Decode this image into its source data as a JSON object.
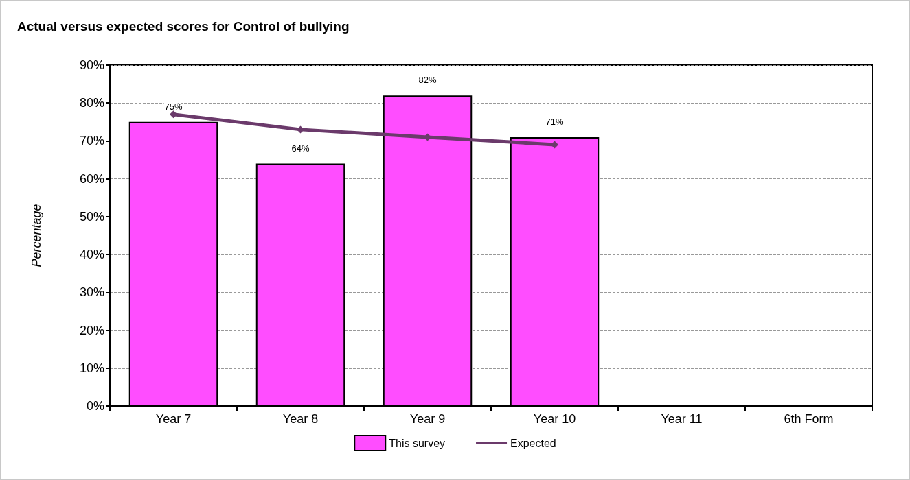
{
  "chart_data": {
    "type": "bar",
    "title": "Actual versus expected scores for Control of bullying",
    "ylabel": "Percentage",
    "categories": [
      "Year 7",
      "Year 8",
      "Year 9",
      "Year 10",
      "Year 11",
      "6th Form"
    ],
    "series": [
      {
        "name": "This survey",
        "color": "#ff4dff",
        "values": [
          75,
          64,
          82,
          71,
          null,
          null
        ],
        "value_labels": [
          "75%",
          "64%",
          "82%",
          "71%",
          null,
          null
        ]
      },
      {
        "name": "Expected",
        "type": "line",
        "color": "#6b3a6b",
        "values": [
          77,
          73,
          71,
          69,
          null,
          null
        ],
        "marker": "diamond",
        "line_style": "solid"
      }
    ],
    "ylim": [
      0,
      90
    ],
    "yticks": [
      {
        "value": 0,
        "label": "0%"
      },
      {
        "value": 10,
        "label": "10%"
      },
      {
        "value": 20,
        "label": "20%"
      },
      {
        "value": 30,
        "label": "30%"
      },
      {
        "value": 40,
        "label": "40%"
      },
      {
        "value": 50,
        "label": "50%"
      },
      {
        "value": 60,
        "label": "60%"
      },
      {
        "value": 70,
        "label": "70%"
      },
      {
        "value": 80,
        "label": "80%"
      },
      {
        "value": 90,
        "label": "90%"
      }
    ],
    "grid": "y",
    "legend": "bottom"
  }
}
